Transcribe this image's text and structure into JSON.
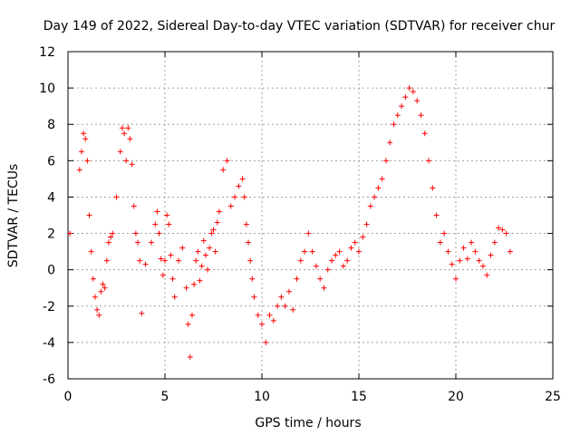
{
  "chart_data": {
    "type": "scatter",
    "title": "Day 149 of 2022, Sidereal Day-to-day VTEC variation (SDTVAR) for receiver chur",
    "xlabel": "GPS time / hours",
    "ylabel": "SDTVAR / TECUs",
    "xlim": [
      0,
      25
    ],
    "ylim": [
      -6,
      12
    ],
    "xticks": [
      0,
      5,
      10,
      15,
      20,
      25
    ],
    "yticks": [
      -6,
      -4,
      -2,
      0,
      2,
      4,
      6,
      8,
      10,
      12
    ],
    "xtick_labels": [
      "0",
      "5",
      "10",
      "15",
      "20",
      "25"
    ],
    "ytick_labels": [
      "-6",
      "-4",
      "-2",
      "0",
      "2",
      "4",
      "6",
      "8",
      "10",
      "12"
    ],
    "grid": true,
    "marker": "+",
    "color": "#ff0000",
    "series": [
      {
        "name": "SDTVAR",
        "x": [
          0.1,
          0.6,
          0.7,
          0.8,
          0.9,
          1.0,
          1.1,
          1.2,
          1.3,
          1.4,
          1.5,
          1.6,
          1.7,
          1.8,
          1.9,
          2.0,
          2.1,
          2.2,
          2.3,
          2.5,
          2.7,
          2.8,
          2.9,
          3.0,
          3.1,
          3.2,
          3.3,
          3.4,
          3.5,
          3.6,
          3.7,
          3.8,
          4.0,
          4.3,
          4.5,
          4.6,
          4.7,
          4.8,
          4.9,
          5.0,
          5.1,
          5.2,
          5.3,
          5.4,
          5.5,
          5.7,
          5.9,
          6.1,
          6.2,
          6.3,
          6.4,
          6.5,
          6.6,
          6.7,
          6.8,
          6.9,
          7.0,
          7.1,
          7.2,
          7.3,
          7.4,
          7.5,
          7.6,
          7.7,
          7.8,
          8.0,
          8.2,
          8.4,
          8.6,
          8.8,
          9.0,
          9.1,
          9.2,
          9.3,
          9.4,
          9.5,
          9.6,
          9.8,
          10.0,
          10.2,
          10.4,
          10.6,
          10.8,
          11.0,
          11.2,
          11.4,
          11.6,
          11.8,
          12.0,
          12.2,
          12.4,
          12.6,
          12.8,
          13.0,
          13.2,
          13.4,
          13.6,
          13.8,
          14.0,
          14.2,
          14.4,
          14.6,
          14.8,
          15.0,
          15.2,
          15.4,
          15.6,
          15.8,
          16.0,
          16.2,
          16.4,
          16.6,
          16.8,
          17.0,
          17.2,
          17.4,
          17.6,
          17.8,
          18.0,
          18.2,
          18.4,
          18.6,
          18.8,
          19.0,
          19.2,
          19.4,
          19.6,
          19.8,
          20.0,
          20.2,
          20.4,
          20.6,
          20.8,
          21.0,
          21.2,
          21.4,
          21.6,
          21.8,
          22.0,
          22.2,
          22.4,
          22.6,
          22.8
        ],
        "y": [
          2.0,
          5.5,
          6.5,
          7.5,
          7.2,
          6.0,
          3.0,
          1.0,
          -0.5,
          -1.5,
          -2.2,
          -2.5,
          -1.2,
          -0.8,
          -1.0,
          0.5,
          1.5,
          1.8,
          2.0,
          4.0,
          6.5,
          7.8,
          7.5,
          6.0,
          7.8,
          7.2,
          5.8,
          3.5,
          2.0,
          1.5,
          0.5,
          -2.4,
          0.3,
          1.5,
          2.5,
          3.2,
          2.0,
          0.6,
          -0.3,
          0.5,
          3.0,
          2.5,
          0.8,
          -0.5,
          -1.5,
          0.5,
          1.2,
          -1.0,
          -3.0,
          -4.8,
          -2.5,
          -0.8,
          0.5,
          1.0,
          -0.6,
          0.2,
          1.6,
          0.8,
          0.0,
          1.2,
          2.0,
          2.2,
          1.0,
          2.6,
          3.2,
          5.5,
          6.0,
          3.5,
          4.0,
          4.6,
          5.0,
          4.0,
          2.5,
          1.5,
          0.5,
          -0.5,
          -1.5,
          -2.5,
          -3.0,
          -4.0,
          -2.5,
          -2.8,
          -2.0,
          -1.5,
          -2.0,
          -1.2,
          -2.2,
          -0.5,
          0.5,
          1.0,
          2.0,
          1.0,
          0.2,
          -0.5,
          -1.0,
          0.0,
          0.5,
          0.8,
          1.0,
          0.2,
          0.5,
          1.2,
          1.5,
          1.0,
          1.8,
          2.5,
          3.5,
          4.0,
          4.5,
          5.0,
          6.0,
          7.0,
          8.0,
          8.5,
          9.0,
          9.5,
          10.0,
          9.8,
          9.3,
          8.5,
          7.5,
          6.0,
          4.5,
          3.0,
          1.5,
          2.0,
          1.0,
          0.3,
          -0.5,
          0.5,
          1.2,
          0.6,
          1.5,
          1.0,
          0.5,
          0.2,
          -0.3,
          0.8,
          1.5,
          2.3,
          2.2,
          2.0,
          1.0
        ]
      }
    ]
  }
}
